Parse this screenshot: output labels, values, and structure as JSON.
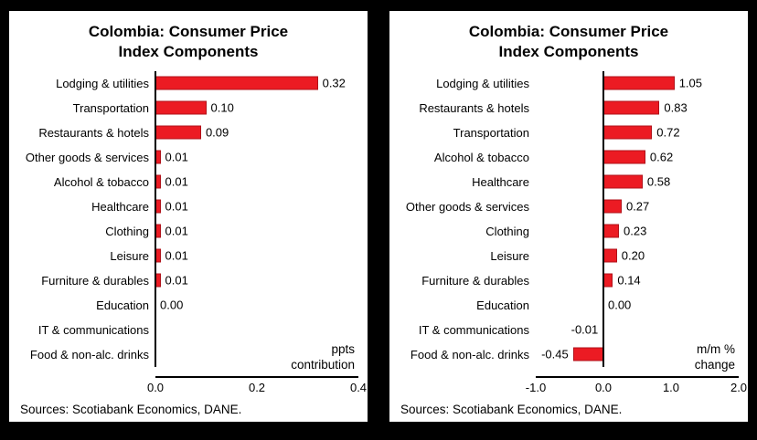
{
  "colors": {
    "bar": "#EC1B23",
    "background": "#000000",
    "panel": "#FFFFFF",
    "text": "#000000"
  },
  "chart_data": [
    {
      "type": "bar",
      "orientation": "horizontal",
      "title": "Colombia: Consumer Price Index Components",
      "title_line1": "Colombia: Consumer Price",
      "title_line2": "Index Components",
      "categories": [
        "Lodging & utilities",
        "Transportation",
        "Restaurants & hotels",
        "Other goods & services",
        "Alcohol & tobacco",
        "Healthcare",
        "Clothing",
        "Leisure",
        "Furniture & durables",
        "Education",
        "IT & communications",
        "Food & non-alc. drinks"
      ],
      "values": [
        0.32,
        0.1,
        0.09,
        0.01,
        0.01,
        0.01,
        0.01,
        0.01,
        0.01,
        0.0,
        0.0,
        0.0
      ],
      "value_labels": [
        "0.32",
        "0.10",
        "0.09",
        "0.01",
        "0.01",
        "0.01",
        "0.01",
        "0.01",
        "0.01",
        "0.00",
        "",
        ""
      ],
      "xlim": [
        0,
        0.4
      ],
      "tick_values": [
        0,
        0.2,
        0.4
      ],
      "tick_labels": [
        "0.0",
        "0.2",
        "0.4"
      ],
      "annotation_lines": [
        "ppts",
        "contribution"
      ],
      "grid": false,
      "legend": false,
      "source": "Sources: Scotiabank Economics, DANE."
    },
    {
      "type": "bar",
      "orientation": "horizontal",
      "title": "Colombia: Consumer Price Index Components",
      "title_line1": "Colombia: Consumer Price",
      "title_line2": "Index Components",
      "categories": [
        "Lodging & utilities",
        "Restaurants & hotels",
        "Transportation",
        "Alcohol & tobacco",
        "Healthcare",
        "Other goods & services",
        "Clothing",
        "Leisure",
        "Furniture & durables",
        "Education",
        "IT & communications",
        "Food & non-alc. drinks"
      ],
      "values": [
        1.05,
        0.83,
        0.72,
        0.62,
        0.58,
        0.27,
        0.23,
        0.2,
        0.14,
        0.0,
        -0.01,
        -0.45
      ],
      "value_labels": [
        "1.05",
        "0.83",
        "0.72",
        "0.62",
        "0.58",
        "0.27",
        "0.23",
        "0.20",
        "0.14",
        "0.00",
        "-0.01",
        "-0.45"
      ],
      "xlim": [
        -1.0,
        2.0
      ],
      "tick_values": [
        -1.0,
        0.0,
        1.0,
        2.0
      ],
      "tick_labels": [
        "-1.0",
        "0.0",
        "1.0",
        "2.0"
      ],
      "annotation_lines": [
        "m/m %",
        "change"
      ],
      "grid": false,
      "legend": false,
      "source": "Sources: Scotiabank Economics, DANE."
    }
  ]
}
